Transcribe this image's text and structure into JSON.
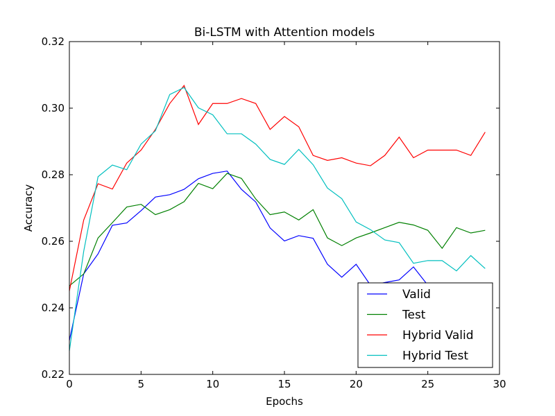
{
  "chart_data": {
    "type": "line",
    "title": "Bi-LSTM with Attention models",
    "xlabel": "Epochs",
    "ylabel": "Accuracy",
    "xlim": [
      0,
      30
    ],
    "ylim": [
      0.22,
      0.32
    ],
    "xticks": [
      "0",
      "5",
      "10",
      "15",
      "20",
      "25",
      "30"
    ],
    "yticks": [
      "0.22",
      "0.24",
      "0.26",
      "0.28",
      "0.30",
      "0.32"
    ],
    "grid": false,
    "legend_position": "lower-right",
    "x": [
      0,
      1,
      2,
      3,
      4,
      5,
      6,
      7,
      8,
      9,
      10,
      11,
      12,
      13,
      14,
      15,
      16,
      17,
      18,
      19,
      20,
      21,
      22,
      23,
      24,
      25,
      26,
      27,
      28,
      29
    ],
    "series": [
      {
        "name": "Valid",
        "color": "#0000ff",
        "values": [
          0.2302,
          0.2502,
          0.2562,
          0.2648,
          0.2655,
          0.2692,
          0.2733,
          0.274,
          0.2756,
          0.2788,
          0.2804,
          0.2811,
          0.2756,
          0.2718,
          0.264,
          0.2601,
          0.2617,
          0.2609,
          0.2531,
          0.2492,
          0.2531,
          0.2468,
          0.2476,
          0.2484,
          0.2523,
          0.2468,
          0.243,
          0.2414,
          0.239,
          0.2375
        ]
      },
      {
        "name": "Test",
        "color": "#008000",
        "values": [
          0.2466,
          0.2502,
          0.261,
          0.2656,
          0.2703,
          0.2711,
          0.268,
          0.2695,
          0.2719,
          0.2774,
          0.2758,
          0.2804,
          0.2789,
          0.2727,
          0.268,
          0.2688,
          0.2664,
          0.2695,
          0.261,
          0.2587,
          0.261,
          0.2625,
          0.2641,
          0.2657,
          0.2649,
          0.2633,
          0.2579,
          0.2641,
          0.2625,
          0.2633
        ]
      },
      {
        "name": "Hybrid Valid",
        "color": "#ff0000",
        "values": [
          0.2451,
          0.2664,
          0.2773,
          0.2757,
          0.2835,
          0.2874,
          0.2936,
          0.3014,
          0.3068,
          0.2951,
          0.3014,
          0.3014,
          0.3029,
          0.3014,
          0.2936,
          0.2975,
          0.2944,
          0.2858,
          0.2843,
          0.2851,
          0.2835,
          0.2827,
          0.2858,
          0.2913,
          0.2851,
          0.2874,
          0.2874,
          0.2874,
          0.2858,
          0.2928
        ]
      },
      {
        "name": "Hybrid Test",
        "color": "#00bfbf",
        "values": [
          0.2271,
          0.257,
          0.2794,
          0.2829,
          0.2815,
          0.2892,
          0.2932,
          0.3041,
          0.3062,
          0.3001,
          0.298,
          0.2923,
          0.2923,
          0.2892,
          0.2846,
          0.2831,
          0.2876,
          0.283,
          0.276,
          0.2728,
          0.2658,
          0.2635,
          0.2604,
          0.2596,
          0.2534,
          0.2542,
          0.2542,
          0.2511,
          0.2557,
          0.2518
        ]
      }
    ]
  }
}
